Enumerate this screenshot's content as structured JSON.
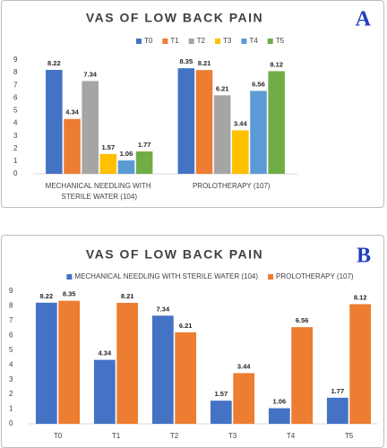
{
  "chart_data": [
    {
      "type": "bar",
      "title": "VAS OF LOW BACK PAIN",
      "panel_label": "A",
      "categories": [
        "MECHANICAL NEEDLING WITH STERILE WATER (104)",
        "PROLOTHERAPY (107)"
      ],
      "series": [
        {
          "name": "T0",
          "color": "#4472c4",
          "values": [
            8.22,
            8.35
          ]
        },
        {
          "name": "T1",
          "color": "#ed7d31",
          "values": [
            4.34,
            8.21
          ]
        },
        {
          "name": "T2",
          "color": "#a5a5a5",
          "values": [
            7.34,
            6.21
          ]
        },
        {
          "name": "T3",
          "color": "#ffc000",
          "values": [
            1.57,
            3.44
          ]
        },
        {
          "name": "T4",
          "color": "#5b9bd5",
          "values": [
            1.06,
            6.56
          ]
        },
        {
          "name": "T5",
          "color": "#70ad47",
          "values": [
            1.77,
            8.12
          ]
        }
      ],
      "ylim": [
        0,
        9
      ],
      "yticks": [
        0,
        1,
        2,
        3,
        4,
        5,
        6,
        7,
        8,
        9
      ],
      "legend": "top"
    },
    {
      "type": "bar",
      "title": "VAS OF LOW BACK PAIN",
      "panel_label": "B",
      "categories": [
        "T0",
        "T1",
        "T2",
        "T3",
        "T4",
        "T5"
      ],
      "series": [
        {
          "name": "MECHANICAL NEEDLING WITH STERILE WATER (104)",
          "color": "#4472c4",
          "values": [
            8.22,
            4.34,
            7.34,
            1.57,
            1.06,
            1.77
          ]
        },
        {
          "name": "PROLOTHERAPY (107)",
          "color": "#ed7d31",
          "values": [
            8.35,
            8.21,
            6.21,
            3.44,
            6.56,
            8.12
          ]
        }
      ],
      "ylim": [
        0,
        9
      ],
      "yticks": [
        0,
        1,
        2,
        3,
        4,
        5,
        6,
        7,
        8,
        9
      ],
      "legend": "top"
    }
  ]
}
